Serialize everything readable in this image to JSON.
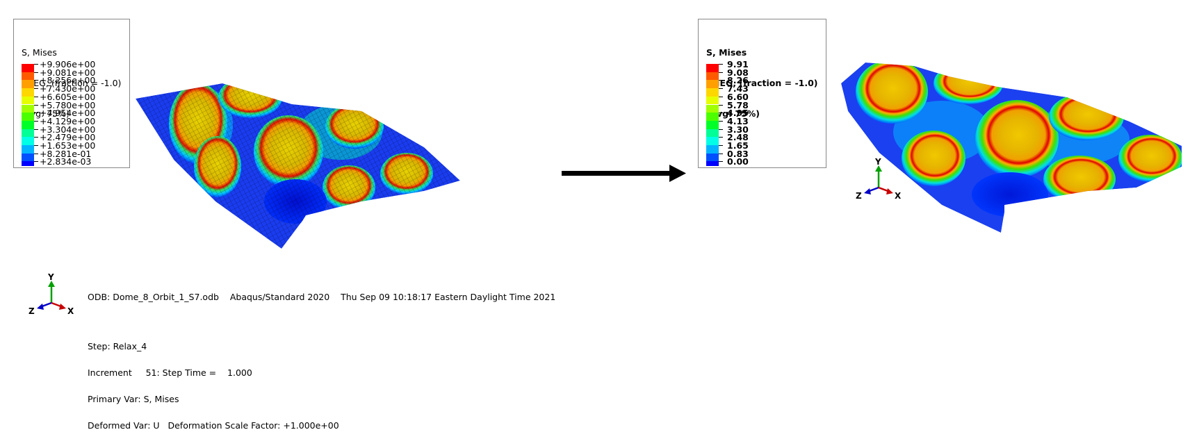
{
  "left_legend": {
    "title": "S, Mises",
    "subtitle": "SNEG, (fraction = -1.0)",
    "avg": "(Avg: 75%)",
    "levels": [
      "+9.906e+00",
      "+9.081e+00",
      "+8.256e+00",
      "+7.430e+00",
      "+6.605e+00",
      "+5.780e+00",
      "+4.954e+00",
      "+4.129e+00",
      "+3.304e+00",
      "+2.479e+00",
      "+1.653e+00",
      "+8.281e-01",
      "+2.834e-03"
    ]
  },
  "right_legend": {
    "title": "S, Mises",
    "subtitle": "SNEG, (fraction = -1.0)",
    "avg": "(Avg: 75%)",
    "levels": [
      "9.91",
      "9.08",
      "8.26",
      "7.43",
      "6.60",
      "5.78",
      "4.95",
      "4.13",
      "3.30",
      "2.48",
      "1.65",
      "0.83",
      "0.00"
    ]
  },
  "band_colors": [
    "#ff0000",
    "#ff5a00",
    "#ffa000",
    "#ffd700",
    "#e6ff00",
    "#a0ff00",
    "#4cff00",
    "#00ff28",
    "#00ff96",
    "#00ffe6",
    "#00b4ff",
    "#0050ff",
    "#0000ff"
  ],
  "arrow_color": "#000000",
  "triad": {
    "y": "Y",
    "z": "Z",
    "x": "X"
  },
  "info": {
    "odb_line": "ODB: Dome_8_Orbit_1_S7.odb    Abaqus/Standard 2020    Thu Sep 09 10:18:17 Eastern Daylight Time 2021",
    "step": "Step: Relax_4",
    "increment": "Increment     51: Step Time =    1.000",
    "primary_var": "Primary Var: S, Mises",
    "deformed_var": "Deformed Var: U   Deformation Scale Factor: +1.000e+00"
  }
}
